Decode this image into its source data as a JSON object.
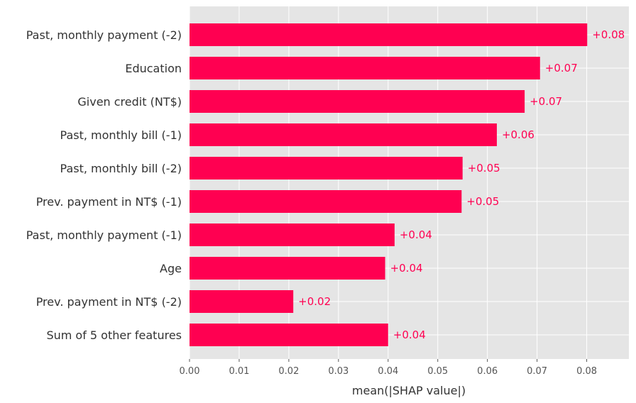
{
  "chart_data": {
    "type": "bar",
    "orientation": "horizontal",
    "categories": [
      "Past, monthly payment (-2)",
      "Education",
      "Given credit (NT$)",
      "Past, monthly bill (-1)",
      "Past, monthly bill (-2)",
      "Prev. payment in NT$ (-1)",
      "Past, monthly payment (-1)",
      "Age",
      "Prev. payment in NT$ (-2)",
      "Sum of 5 other features"
    ],
    "values": [
      0.0801,
      0.0706,
      0.0675,
      0.0619,
      0.055,
      0.0548,
      0.0413,
      0.0394,
      0.0209,
      0.04
    ],
    "data_labels": [
      "+0.08",
      "+0.07",
      "+0.07",
      "+0.06",
      "+0.05",
      "+0.05",
      "+0.04",
      "+0.04",
      "+0.02",
      "+0.04"
    ],
    "xlabel": "mean(|SHAP value|)",
    "ylabel": "",
    "xlim": [
      0,
      0.0885
    ],
    "xticks": [
      0,
      0.01,
      0.02,
      0.03,
      0.04,
      0.05,
      0.06,
      0.07,
      0.08
    ],
    "xtick_labels": [
      "0.00",
      "0.01",
      "0.02",
      "0.03",
      "0.04",
      "0.05",
      "0.06",
      "0.07",
      "0.08"
    ],
    "grid": true,
    "legend": "none",
    "colors": {
      "bar": "#ff0051",
      "label": "#ff0051",
      "background": "#e5e5e5",
      "grid": "#ffffff"
    }
  }
}
